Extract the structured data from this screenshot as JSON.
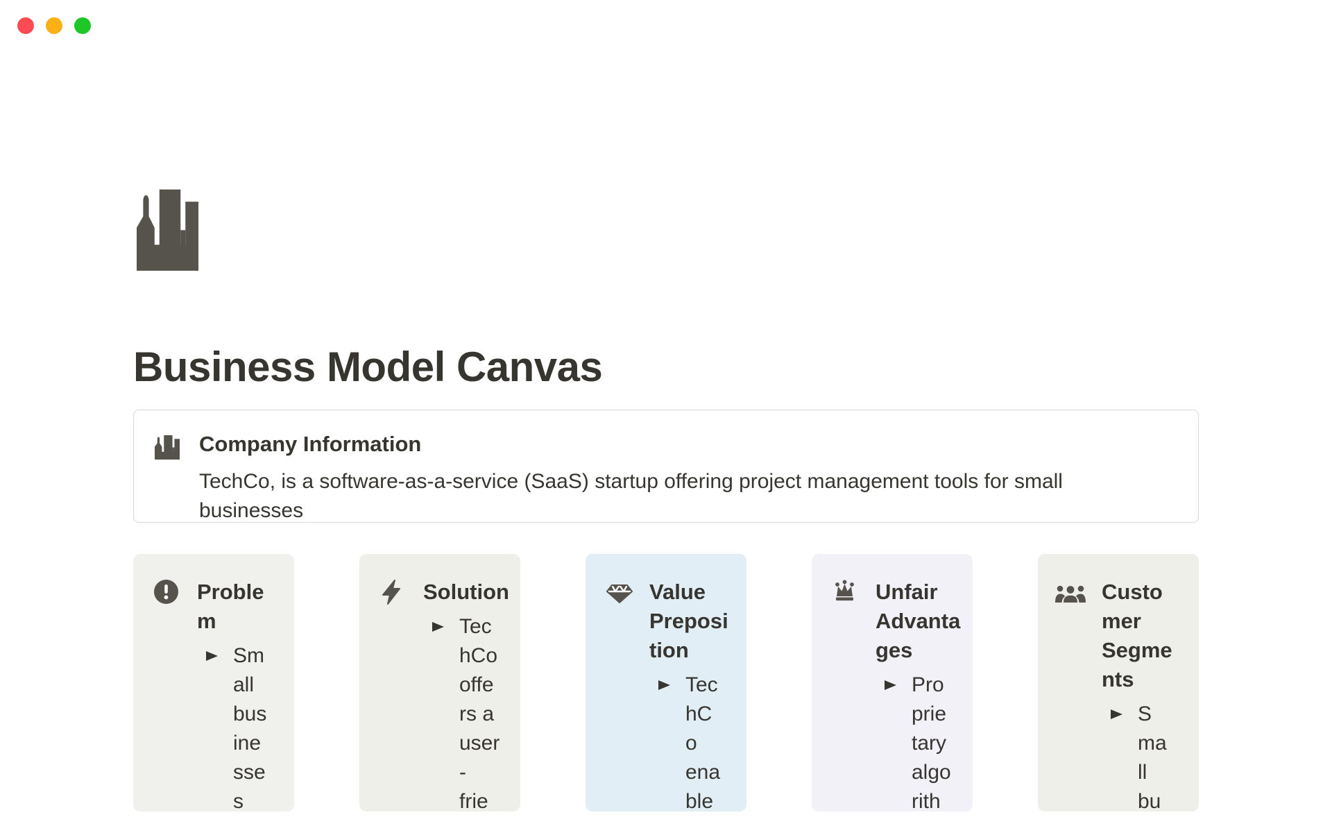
{
  "window": {
    "traffic_lights": [
      {
        "name": "close",
        "color": "#fc4b53"
      },
      {
        "name": "minimize",
        "color": "#fcb017"
      },
      {
        "name": "zoom",
        "color": "#1cc727"
      }
    ]
  },
  "page": {
    "icon": "city-buildings-icon",
    "title": "Business Model Canvas"
  },
  "callout": {
    "icon": "city-buildings-icon",
    "title": "Company Information",
    "body": "TechCo, is a software-as-a-service (SaaS) startup offering project management tools for small businesses"
  },
  "canvas": {
    "cards": [
      {
        "id": "problem",
        "icon": "exclamation-circle-icon",
        "bg": "#f0f0ec",
        "title": "Proble\nm",
        "bullet": "Sm\nall\nbus\nine\nsse\ns"
      },
      {
        "id": "solution",
        "icon": "lightning-bolt-icon",
        "bg": "#efefe9",
        "title": "Solution",
        "bullet": "Tec\nhCo\noffe\nrs a\nuser\n-\nfrie"
      },
      {
        "id": "value-preposition",
        "icon": "gem-icon",
        "bg": "#e1eef6",
        "title": "Value\nPreposi\ntion",
        "bullet": "Tec\nhC\no\nena\nble"
      },
      {
        "id": "unfair-advantages",
        "icon": "crown-icon",
        "bg": "#f3f1f8",
        "title": "Unfair\nAdvanta\nges",
        "bullet": "Pro\nprie\ntary\nalgo\nrith"
      },
      {
        "id": "customer-segments",
        "icon": "people-icon",
        "bg": "#efefe9",
        "title": "Custo\nmer\nSegme\nnts",
        "bullet": "S\nma\nll\nbu"
      }
    ]
  },
  "colors": {
    "text": "#37352f",
    "icon_gray": "#55534c",
    "callout_border": "#d9d8d4"
  }
}
